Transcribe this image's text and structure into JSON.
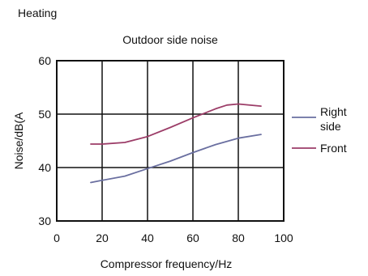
{
  "page": {
    "heading": "Heating"
  },
  "chart_data": {
    "type": "line",
    "title": "Outdoor side noise",
    "xlabel": "Compressor frequency/Hz",
    "ylabel": "Noise/dB(A",
    "xlim": [
      0,
      100
    ],
    "ylim": [
      30,
      60
    ],
    "xticks": [
      0,
      20,
      40,
      60,
      80,
      100
    ],
    "yticks": [
      30,
      40,
      50,
      60
    ],
    "grid": true,
    "legend_position": "right",
    "series": [
      {
        "name_lines": [
          "Right",
          "side"
        ],
        "name": "Right side",
        "color": "#6a6fa0",
        "x": [
          15,
          20,
          30,
          40,
          50,
          60,
          70,
          80,
          90
        ],
        "y": [
          37.2,
          37.6,
          38.4,
          39.8,
          41.2,
          42.8,
          44.3,
          45.5,
          46.2
        ]
      },
      {
        "name_lines": [
          "Front"
        ],
        "name": "Front",
        "color": "#9c3d68",
        "x": [
          15,
          20,
          30,
          40,
          50,
          60,
          70,
          75,
          80,
          90
        ],
        "y": [
          44.4,
          44.4,
          44.7,
          45.8,
          47.5,
          49.3,
          51.0,
          51.7,
          51.9,
          51.5
        ]
      }
    ]
  }
}
